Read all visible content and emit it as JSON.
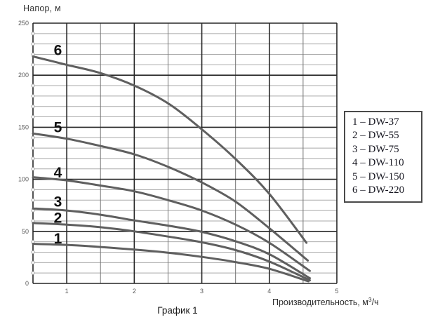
{
  "chart_data": {
    "type": "line",
    "title": "График 1",
    "ylabel": "Напор, м",
    "xlabel": "Производительность, м³/ч",
    "xlabel_base": "Производительность, м",
    "xlabel_sup": "3",
    "xlabel_suffix": "/ч",
    "xlim": [
      0.5,
      5
    ],
    "ylim": [
      0,
      250
    ],
    "x_tick_labels": [
      1,
      2,
      3,
      4,
      5
    ],
    "y_tick_labels": [
      0,
      50,
      100,
      150,
      200,
      250
    ],
    "x_minor_step": 0.5,
    "y_major_step": 50,
    "y_minor_step": 10,
    "grid": "on",
    "legend_position": "right-outside",
    "legend_separator": "–",
    "series": [
      {
        "label": "1",
        "name": "DW-37",
        "label_x": 0.868,
        "label_y": 43,
        "points": [
          [
            0.5,
            38
          ],
          [
            1,
            37
          ],
          [
            1.5,
            35
          ],
          [
            2,
            32.5
          ],
          [
            2.5,
            29.5
          ],
          [
            3,
            25.5
          ],
          [
            3.5,
            20.5
          ],
          [
            4,
            14
          ],
          [
            4.58,
            2
          ]
        ]
      },
      {
        "label": "2",
        "name": "DW-55",
        "label_x": 0.868,
        "label_y": 63,
        "points": [
          [
            0.5,
            58
          ],
          [
            1,
            56.5
          ],
          [
            1.5,
            54
          ],
          [
            2,
            50
          ],
          [
            2.5,
            45
          ],
          [
            3,
            39.5
          ],
          [
            3.5,
            32
          ],
          [
            4,
            21
          ],
          [
            4.6,
            3
          ]
        ]
      },
      {
        "label": "3",
        "name": "DW-75",
        "label_x": 0.868,
        "label_y": 78.5,
        "points": [
          [
            0.5,
            72
          ],
          [
            1,
            70
          ],
          [
            1.5,
            66
          ],
          [
            2,
            60.5
          ],
          [
            2.5,
            55.5
          ],
          [
            3,
            49.5
          ],
          [
            3.5,
            40.5
          ],
          [
            4,
            28
          ],
          [
            4.6,
            5
          ]
        ]
      },
      {
        "label": "4",
        "name": "DW-110",
        "label_x": 0.868,
        "label_y": 106.5,
        "points": [
          [
            0.5,
            102
          ],
          [
            1,
            99
          ],
          [
            1.5,
            94
          ],
          [
            2,
            88.5
          ],
          [
            2.5,
            80
          ],
          [
            3,
            70
          ],
          [
            3.5,
            56.5
          ],
          [
            4,
            39
          ],
          [
            4.6,
            12
          ]
        ]
      },
      {
        "label": "5",
        "name": "DW-150",
        "label_x": 0.868,
        "label_y": 150,
        "points": [
          [
            0.5,
            144
          ],
          [
            1,
            139
          ],
          [
            1.5,
            132
          ],
          [
            2,
            124
          ],
          [
            2.5,
            112
          ],
          [
            3,
            97
          ],
          [
            3.5,
            78.5
          ],
          [
            4,
            53
          ],
          [
            4.57,
            22
          ]
        ]
      },
      {
        "label": "6",
        "name": "DW-220",
        "label_x": 0.868,
        "label_y": 224,
        "points": [
          [
            0.5,
            218
          ],
          [
            1,
            210
          ],
          [
            1.5,
            202
          ],
          [
            2,
            190
          ],
          [
            2.5,
            173
          ],
          [
            3,
            148
          ],
          [
            3.5,
            119.5
          ],
          [
            4,
            86
          ],
          [
            4.55,
            39
          ]
        ]
      }
    ]
  },
  "colors": {
    "curve": "#5f5f5f",
    "grid_major": "#262626",
    "grid_minor_h": "#a9a9a9",
    "grid_minor_v": "#757575",
    "tick_label": "#595959",
    "curve_label": "#111111",
    "axis_circle_stroke": "#999999"
  }
}
